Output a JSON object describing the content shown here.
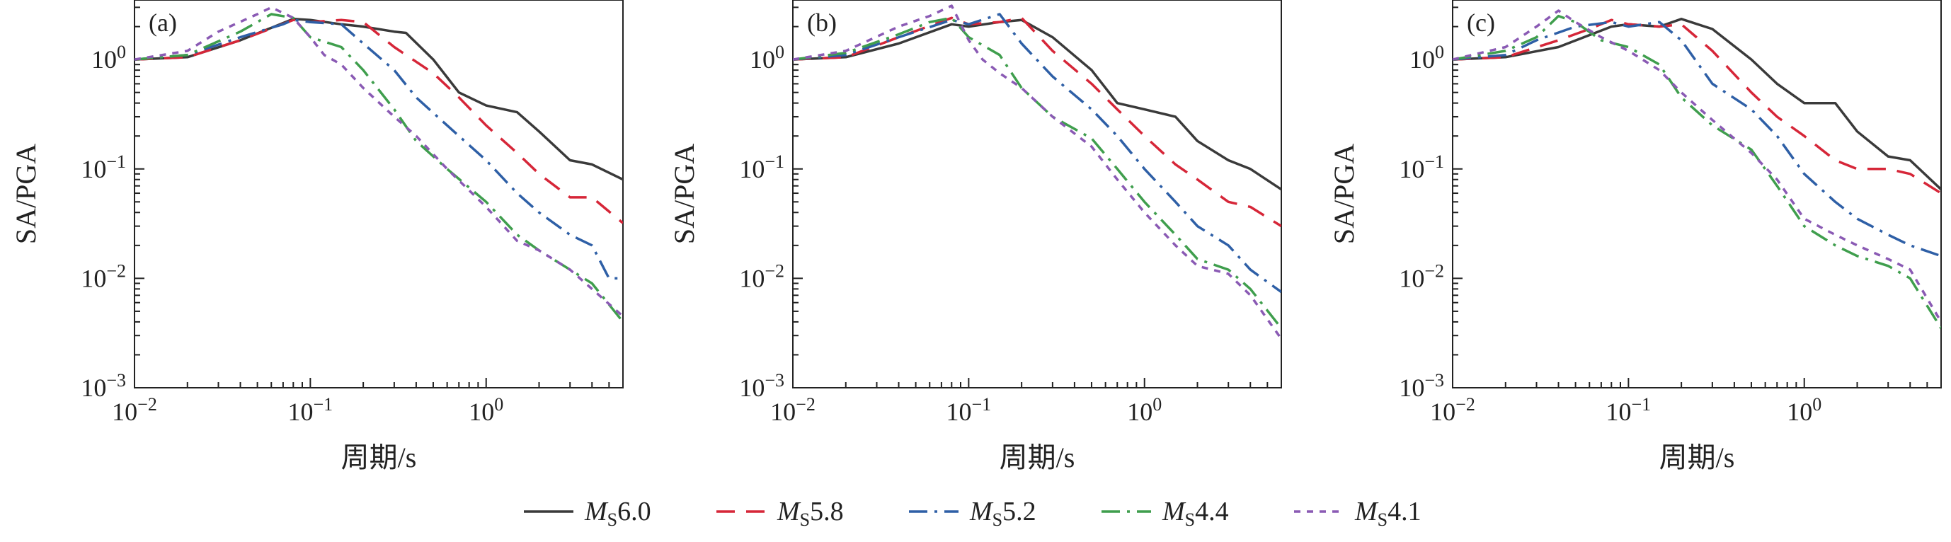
{
  "figure": {
    "legend": [
      {
        "prefix": "M",
        "sub": "S",
        "value": "6.0"
      },
      {
        "prefix": "M",
        "sub": "S",
        "value": "5.8"
      },
      {
        "prefix": "M",
        "sub": "S",
        "value": "5.2"
      },
      {
        "prefix": "M",
        "sub": "S",
        "value": "4.4"
      },
      {
        "prefix": "M",
        "sub": "S",
        "value": "4.1"
      }
    ]
  },
  "chart_data": [
    {
      "type": "line",
      "panel_label": "(a)",
      "xlabel": "周期/s",
      "ylabel": "SA/PGA",
      "xscale": "log",
      "yscale": "log",
      "xlim": [
        0.01,
        6
      ],
      "ylim": [
        0.001,
        3.5
      ],
      "xticks": [
        {
          "base": "10",
          "exp": "−2"
        },
        {
          "base": "10",
          "exp": "−1"
        },
        {
          "base": "10",
          "exp": "0"
        }
      ],
      "yticks": [
        {
          "base": "10",
          "exp": "0"
        },
        {
          "base": "10",
          "exp": "−1"
        },
        {
          "base": "10",
          "exp": "−2"
        },
        {
          "base": "10",
          "exp": "−3"
        }
      ],
      "legend": "bottom",
      "series": [
        {
          "name": "Ms6.0",
          "color": "#3a3a3a",
          "dash": "solid",
          "x": [
            0.01,
            0.02,
            0.04,
            0.08,
            0.1,
            0.15,
            0.2,
            0.3,
            0.35,
            0.5,
            0.7,
            1.0,
            1.5,
            2.0,
            3.0,
            4.0,
            6.0
          ],
          "y": [
            1.0,
            1.05,
            1.5,
            2.35,
            2.3,
            2.1,
            2.0,
            1.8,
            1.75,
            1.0,
            0.5,
            0.38,
            0.33,
            0.22,
            0.12,
            0.11,
            0.08
          ]
        },
        {
          "name": "Ms5.8",
          "color": "#d62638",
          "dash": "longdash",
          "x": [
            0.01,
            0.02,
            0.04,
            0.08,
            0.1,
            0.15,
            0.2,
            0.3,
            0.5,
            0.7,
            1.0,
            1.5,
            2.0,
            3.0,
            4.0,
            6.0
          ],
          "y": [
            1.0,
            1.05,
            1.5,
            2.3,
            2.2,
            2.3,
            2.2,
            1.3,
            0.75,
            0.45,
            0.25,
            0.14,
            0.09,
            0.055,
            0.055,
            0.032
          ]
        },
        {
          "name": "Ms5.2",
          "color": "#2e5fa6",
          "dash": "dashdot",
          "x": [
            0.01,
            0.02,
            0.04,
            0.07,
            0.08,
            0.1,
            0.15,
            0.2,
            0.3,
            0.4,
            0.6,
            1.0,
            1.5,
            2.0,
            3.0,
            4.0,
            5.0,
            6.0
          ],
          "y": [
            1.0,
            1.1,
            1.6,
            2.1,
            2.3,
            2.2,
            2.1,
            1.4,
            0.8,
            0.45,
            0.25,
            0.12,
            0.06,
            0.04,
            0.025,
            0.02,
            0.01,
            0.01
          ]
        },
        {
          "name": "Ms4.4",
          "color": "#3f9e4d",
          "dash": "dashdot",
          "x": [
            0.01,
            0.02,
            0.04,
            0.06,
            0.08,
            0.1,
            0.15,
            0.2,
            0.3,
            0.4,
            0.6,
            1.0,
            1.5,
            2.0,
            3.0,
            4.0,
            6.0
          ],
          "y": [
            1.0,
            1.1,
            1.8,
            2.6,
            2.4,
            1.6,
            1.3,
            0.8,
            0.35,
            0.18,
            0.1,
            0.05,
            0.025,
            0.018,
            0.012,
            0.009,
            0.004
          ]
        },
        {
          "name": "Ms4.1",
          "color": "#8a5ab4",
          "dash": "shortdash",
          "x": [
            0.01,
            0.02,
            0.03,
            0.05,
            0.06,
            0.08,
            0.1,
            0.12,
            0.15,
            0.2,
            0.3,
            0.4,
            0.6,
            1.0,
            1.5,
            2.0,
            3.0,
            4.0,
            6.0
          ],
          "y": [
            1.0,
            1.2,
            1.8,
            2.6,
            3.0,
            2.4,
            1.6,
            1.1,
            0.9,
            0.55,
            0.3,
            0.2,
            0.1,
            0.045,
            0.022,
            0.018,
            0.012,
            0.008,
            0.0045
          ]
        }
      ]
    },
    {
      "type": "line",
      "panel_label": "(b)",
      "xlabel": "周期/s",
      "ylabel": "SA/PGA",
      "xscale": "log",
      "yscale": "log",
      "xlim": [
        0.01,
        6
      ],
      "ylim": [
        0.001,
        3.5
      ],
      "xticks": [
        {
          "base": "10",
          "exp": "−2"
        },
        {
          "base": "10",
          "exp": "−1"
        },
        {
          "base": "10",
          "exp": "0"
        }
      ],
      "yticks": [
        {
          "base": "10",
          "exp": "0"
        },
        {
          "base": "10",
          "exp": "−1"
        },
        {
          "base": "10",
          "exp": "−2"
        },
        {
          "base": "10",
          "exp": "−3"
        }
      ],
      "legend": "bottom",
      "series": [
        {
          "name": "Ms6.0",
          "color": "#3a3a3a",
          "dash": "solid",
          "x": [
            0.01,
            0.02,
            0.04,
            0.08,
            0.1,
            0.15,
            0.2,
            0.3,
            0.5,
            0.7,
            1.0,
            1.5,
            2.0,
            3.0,
            4.0,
            6.0
          ],
          "y": [
            1.0,
            1.05,
            1.4,
            2.1,
            2.0,
            2.2,
            2.3,
            1.6,
            0.8,
            0.4,
            0.35,
            0.3,
            0.18,
            0.12,
            0.1,
            0.065
          ]
        },
        {
          "name": "Ms5.8",
          "color": "#d62638",
          "dash": "longdash",
          "x": [
            0.01,
            0.02,
            0.04,
            0.08,
            0.1,
            0.15,
            0.2,
            0.3,
            0.5,
            0.7,
            1.0,
            1.5,
            2.0,
            3.0,
            4.0,
            6.0
          ],
          "y": [
            1.0,
            1.05,
            1.6,
            2.4,
            2.1,
            2.2,
            2.4,
            1.2,
            0.6,
            0.35,
            0.2,
            0.11,
            0.08,
            0.05,
            0.045,
            0.03
          ]
        },
        {
          "name": "Ms5.2",
          "color": "#2e5fa6",
          "dash": "dashdot",
          "x": [
            0.01,
            0.02,
            0.04,
            0.08,
            0.1,
            0.15,
            0.2,
            0.3,
            0.5,
            0.7,
            1.0,
            1.5,
            2.0,
            3.0,
            4.0,
            6.0
          ],
          "y": [
            1.0,
            1.1,
            1.6,
            2.3,
            2.1,
            2.6,
            1.4,
            0.7,
            0.35,
            0.2,
            0.1,
            0.05,
            0.03,
            0.02,
            0.012,
            0.0075
          ]
        },
        {
          "name": "Ms4.4",
          "color": "#3f9e4d",
          "dash": "dashdot",
          "x": [
            0.01,
            0.02,
            0.04,
            0.06,
            0.08,
            0.1,
            0.15,
            0.2,
            0.3,
            0.5,
            0.7,
            1.0,
            1.5,
            2.0,
            3.0,
            4.0,
            6.0
          ],
          "y": [
            1.0,
            1.15,
            1.7,
            2.2,
            2.4,
            1.6,
            1.1,
            0.55,
            0.3,
            0.19,
            0.1,
            0.05,
            0.025,
            0.015,
            0.012,
            0.008,
            0.0035
          ]
        },
        {
          "name": "Ms4.1",
          "color": "#8a5ab4",
          "dash": "shortdash",
          "x": [
            0.01,
            0.02,
            0.04,
            0.06,
            0.08,
            0.1,
            0.12,
            0.15,
            0.2,
            0.3,
            0.5,
            0.7,
            1.0,
            1.5,
            2.0,
            3.0,
            4.0,
            6.0
          ],
          "y": [
            1.0,
            1.2,
            2.0,
            2.5,
            3.1,
            1.5,
            1.0,
            0.75,
            0.55,
            0.3,
            0.16,
            0.08,
            0.04,
            0.02,
            0.013,
            0.011,
            0.007,
            0.0028
          ]
        }
      ]
    },
    {
      "type": "line",
      "panel_label": "(c)",
      "xlabel": "周期/s",
      "ylabel": "SA/PGA",
      "xscale": "log",
      "yscale": "log",
      "xlim": [
        0.01,
        6
      ],
      "ylim": [
        0.001,
        3.5
      ],
      "xticks": [
        {
          "base": "10",
          "exp": "−2"
        },
        {
          "base": "10",
          "exp": "−1"
        },
        {
          "base": "10",
          "exp": "0"
        }
      ],
      "yticks": [
        {
          "base": "10",
          "exp": "0"
        },
        {
          "base": "10",
          "exp": "−1"
        },
        {
          "base": "10",
          "exp": "−2"
        },
        {
          "base": "10",
          "exp": "−3"
        }
      ],
      "legend": "bottom",
      "series": [
        {
          "name": "Ms6.0",
          "color": "#3a3a3a",
          "dash": "solid",
          "x": [
            0.01,
            0.02,
            0.04,
            0.08,
            0.1,
            0.15,
            0.2,
            0.3,
            0.5,
            0.7,
            1.0,
            1.5,
            2.0,
            3.0,
            4.0,
            6.0
          ],
          "y": [
            1.0,
            1.05,
            1.3,
            2.0,
            2.1,
            2.0,
            2.35,
            1.9,
            1.0,
            0.6,
            0.4,
            0.4,
            0.22,
            0.13,
            0.12,
            0.065
          ]
        },
        {
          "name": "Ms5.8",
          "color": "#d62638",
          "dash": "longdash",
          "x": [
            0.01,
            0.02,
            0.04,
            0.06,
            0.08,
            0.1,
            0.15,
            0.2,
            0.3,
            0.5,
            0.7,
            1.0,
            1.5,
            2.0,
            3.0,
            4.0,
            6.0
          ],
          "y": [
            1.0,
            1.05,
            1.5,
            1.9,
            2.3,
            2.1,
            2.0,
            2.1,
            1.2,
            0.5,
            0.3,
            0.2,
            0.12,
            0.1,
            0.1,
            0.09,
            0.06
          ]
        },
        {
          "name": "Ms5.2",
          "color": "#2e5fa6",
          "dash": "dashdot",
          "x": [
            0.01,
            0.02,
            0.03,
            0.05,
            0.08,
            0.1,
            0.15,
            0.2,
            0.3,
            0.5,
            0.7,
            1.0,
            1.5,
            2.0,
            3.0,
            4.0,
            6.0
          ],
          "y": [
            1.0,
            1.1,
            1.5,
            2.0,
            2.2,
            2.0,
            2.2,
            1.5,
            0.6,
            0.35,
            0.2,
            0.09,
            0.05,
            0.035,
            0.025,
            0.02,
            0.016
          ]
        },
        {
          "name": "Ms4.4",
          "color": "#3f9e4d",
          "dash": "dashdot",
          "x": [
            0.01,
            0.02,
            0.03,
            0.04,
            0.05,
            0.07,
            0.1,
            0.15,
            0.2,
            0.3,
            0.5,
            0.7,
            1.0,
            1.5,
            2.0,
            3.0,
            4.0,
            6.0
          ],
          "y": [
            1.0,
            1.2,
            1.6,
            2.5,
            2.2,
            1.5,
            1.3,
            0.9,
            0.45,
            0.25,
            0.15,
            0.07,
            0.03,
            0.02,
            0.016,
            0.013,
            0.01,
            0.0035
          ]
        },
        {
          "name": "Ms4.1",
          "color": "#8a5ab4",
          "dash": "shortdash",
          "x": [
            0.01,
            0.02,
            0.03,
            0.04,
            0.05,
            0.07,
            0.1,
            0.15,
            0.2,
            0.3,
            0.5,
            0.7,
            1.0,
            1.5,
            2.0,
            3.0,
            4.0,
            6.0
          ],
          "y": [
            1.0,
            1.3,
            2.0,
            2.8,
            2.2,
            1.6,
            1.2,
            0.8,
            0.5,
            0.28,
            0.14,
            0.08,
            0.035,
            0.025,
            0.02,
            0.015,
            0.012,
            0.004
          ]
        }
      ]
    }
  ]
}
